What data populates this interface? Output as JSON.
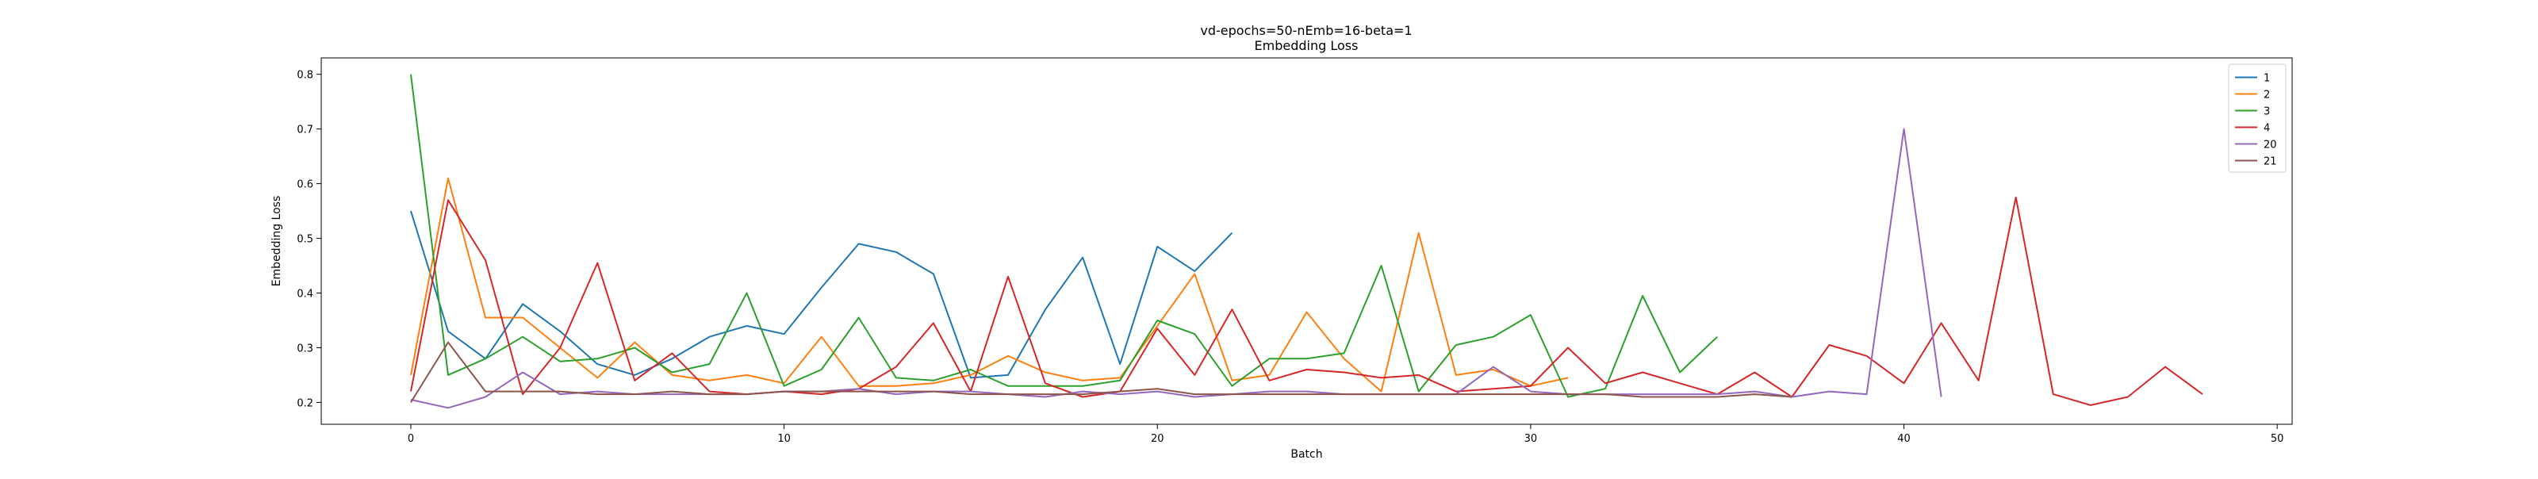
{
  "chart_data": {
    "type": "line",
    "title": "vd-epochs=50-nEmb=16-beta=1",
    "subtitle": "Embedding Loss",
    "xlabel": "Batch",
    "ylabel": "Embedding Loss",
    "xlim": [
      -2.4,
      50.4
    ],
    "ylim": [
      0.16,
      0.83
    ],
    "xticks": [
      0,
      10,
      20,
      30,
      40,
      50
    ],
    "yticks": [
      0.2,
      0.3,
      0.4,
      0.5,
      0.6,
      0.7,
      0.8
    ],
    "grid": false,
    "legend_position": "top-right",
    "series": [
      {
        "name": "1",
        "color": "#1f77b4",
        "x": [
          0,
          1,
          2,
          3,
          4,
          5,
          6,
          7,
          8,
          9,
          10,
          11,
          12,
          13,
          14,
          15,
          16,
          17,
          18,
          19,
          20,
          21,
          22
        ],
        "values": [
          0.55,
          0.33,
          0.28,
          0.38,
          0.33,
          0.27,
          0.25,
          0.28,
          0.32,
          0.34,
          0.325,
          0.41,
          0.49,
          0.475,
          0.435,
          0.245,
          0.25,
          0.37,
          0.465,
          0.27,
          0.485,
          0.44,
          0.51
        ]
      },
      {
        "name": "2",
        "color": "#ff7f0e",
        "x": [
          0,
          1,
          2,
          3,
          4,
          5,
          6,
          7,
          8,
          9,
          10,
          11,
          12,
          13,
          14,
          15,
          16,
          17,
          18,
          19,
          20,
          21,
          22,
          23,
          24,
          25,
          26,
          27,
          28,
          29,
          30,
          31
        ],
        "values": [
          0.25,
          0.61,
          0.355,
          0.355,
          0.3,
          0.245,
          0.31,
          0.25,
          0.24,
          0.25,
          0.235,
          0.32,
          0.23,
          0.23,
          0.235,
          0.25,
          0.285,
          0.255,
          0.24,
          0.245,
          0.34,
          0.435,
          0.24,
          0.25,
          0.365,
          0.28,
          0.22,
          0.51,
          0.25,
          0.26,
          0.23,
          0.245
        ]
      },
      {
        "name": "3",
        "color": "#2ca02c",
        "x": [
          0,
          1,
          2,
          3,
          4,
          5,
          6,
          7,
          8,
          9,
          10,
          11,
          12,
          13,
          14,
          15,
          16,
          17,
          18,
          19,
          20,
          21,
          22,
          23,
          24,
          25,
          26,
          27,
          28,
          29,
          30,
          31,
          32,
          33,
          34,
          35
        ],
        "values": [
          0.8,
          0.25,
          0.28,
          0.32,
          0.275,
          0.28,
          0.3,
          0.255,
          0.27,
          0.4,
          0.23,
          0.26,
          0.355,
          0.245,
          0.24,
          0.26,
          0.23,
          0.23,
          0.23,
          0.24,
          0.35,
          0.325,
          0.23,
          0.28,
          0.28,
          0.29,
          0.45,
          0.22,
          0.305,
          0.32,
          0.36,
          0.21,
          0.225,
          0.395,
          0.255,
          0.32
        ]
      },
      {
        "name": "4",
        "color": "#d62728",
        "x": [
          0,
          1,
          2,
          3,
          4,
          5,
          6,
          7,
          8,
          9,
          10,
          11,
          12,
          13,
          14,
          15,
          16,
          17,
          18,
          19,
          20,
          21,
          22,
          23,
          24,
          25,
          26,
          27,
          28,
          29,
          30,
          31,
          32,
          33,
          34,
          35,
          36,
          37,
          38,
          39,
          40,
          41,
          42,
          43,
          44,
          45,
          46,
          47,
          48
        ],
        "values": [
          0.22,
          0.57,
          0.46,
          0.215,
          0.3,
          0.455,
          0.24,
          0.29,
          0.22,
          0.215,
          0.22,
          0.215,
          0.225,
          0.265,
          0.345,
          0.22,
          0.43,
          0.235,
          0.21,
          0.22,
          0.335,
          0.25,
          0.37,
          0.24,
          0.26,
          0.255,
          0.245,
          0.25,
          0.22,
          0.225,
          0.23,
          0.3,
          0.235,
          0.255,
          0.235,
          0.215,
          0.255,
          0.21,
          0.305,
          0.285,
          0.235,
          0.345,
          0.24,
          0.575,
          0.215,
          0.195,
          0.21,
          0.265,
          0.215
        ]
      },
      {
        "name": "20",
        "color": "#9467bd",
        "x": [
          0,
          1,
          2,
          3,
          4,
          5,
          6,
          7,
          8,
          9,
          10,
          11,
          12,
          13,
          14,
          15,
          16,
          17,
          18,
          19,
          20,
          21,
          22,
          23,
          24,
          25,
          26,
          27,
          28,
          29,
          30,
          31,
          32,
          33,
          34,
          35,
          36,
          37,
          38,
          39,
          40,
          41
        ],
        "values": [
          0.205,
          0.19,
          0.21,
          0.255,
          0.215,
          0.22,
          0.215,
          0.215,
          0.215,
          0.215,
          0.22,
          0.22,
          0.225,
          0.215,
          0.22,
          0.22,
          0.215,
          0.21,
          0.22,
          0.215,
          0.22,
          0.21,
          0.215,
          0.22,
          0.22,
          0.215,
          0.215,
          0.215,
          0.215,
          0.265,
          0.22,
          0.215,
          0.215,
          0.215,
          0.215,
          0.215,
          0.22,
          0.21,
          0.22,
          0.215,
          0.7,
          0.21
        ]
      },
      {
        "name": "21",
        "color": "#8c564b",
        "x": [
          0,
          1,
          2,
          3,
          4,
          5,
          6,
          7,
          8,
          9,
          10,
          11,
          12,
          13,
          14,
          15,
          16,
          17,
          18,
          19,
          20,
          21,
          22,
          23,
          24,
          25,
          26,
          27,
          28,
          29,
          30,
          31,
          32,
          33,
          34,
          35,
          36,
          37
        ],
        "values": [
          0.2,
          0.31,
          0.22,
          0.22,
          0.22,
          0.215,
          0.215,
          0.22,
          0.215,
          0.215,
          0.22,
          0.22,
          0.22,
          0.22,
          0.22,
          0.215,
          0.215,
          0.215,
          0.215,
          0.22,
          0.225,
          0.215,
          0.215,
          0.215,
          0.215,
          0.215,
          0.215,
          0.215,
          0.215,
          0.215,
          0.215,
          0.215,
          0.215,
          0.21,
          0.21,
          0.21,
          0.215,
          0.21
        ]
      }
    ]
  }
}
